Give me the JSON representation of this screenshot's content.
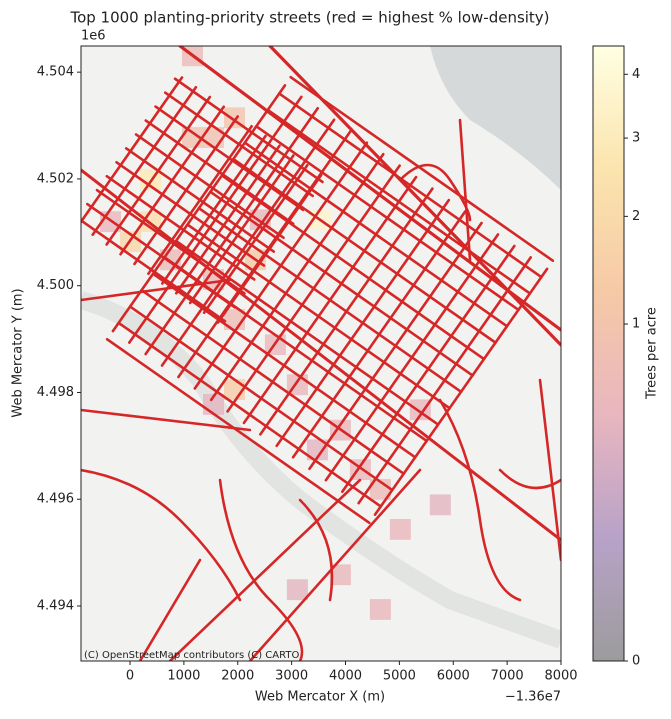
{
  "chart_data": {
    "type": "heatmap-map",
    "title": "Top 1000 planting-priority streets (red = highest % low-density)",
    "x_label": "Web Mercator X (m)",
    "y_label": "Web Mercator Y (m)",
    "x_offset_label": "−1.36e7",
    "y_offset_label": "1e6",
    "attribution": "(C) OpenStreetMap contributors (C) CARTO",
    "xlim": [
      -910,
      8000
    ],
    "ylim": [
      4492970,
      4504490
    ],
    "xticks": [
      0,
      1000,
      2000,
      3000,
      4000,
      5000,
      6000,
      7000,
      8000
    ],
    "yticks": [
      {
        "value": 4494000,
        "label": "4.494"
      },
      {
        "value": 4496000,
        "label": "4.496"
      },
      {
        "value": 4498000,
        "label": "4.498"
      },
      {
        "value": 4500000,
        "label": "4.500"
      },
      {
        "value": 4502000,
        "label": "4.502"
      },
      {
        "value": 4504000,
        "label": "4.504"
      }
    ],
    "street_color": "#d62728",
    "cell_size": 390,
    "cells": [
      {
        "x": 965,
        "y": 4504110,
        "value": 0.6
      },
      {
        "x": 1744,
        "y": 4502950,
        "value": 1.0
      },
      {
        "x": 965,
        "y": 4502580,
        "value": 0.8
      },
      {
        "x": 1354,
        "y": 4502580,
        "value": 0.8
      },
      {
        "x": 186,
        "y": 4501790,
        "value": 2.8
      },
      {
        "x": -557,
        "y": 4501005,
        "value": 0.5
      },
      {
        "x": -186,
        "y": 4500630,
        "value": 1.8
      },
      {
        "x": 186,
        "y": 4501005,
        "value": 2.2
      },
      {
        "x": 3339,
        "y": 4501040,
        "value": 3.5
      },
      {
        "x": 1354,
        "y": 4499920,
        "value": 0.6
      },
      {
        "x": 2133,
        "y": 4500290,
        "value": 1.2
      },
      {
        "x": 1744,
        "y": 4499170,
        "value": 0.7
      },
      {
        "x": 2504,
        "y": 4498700,
        "value": 0.5
      },
      {
        "x": 1354,
        "y": 4497580,
        "value": 0.4
      },
      {
        "x": 1744,
        "y": 4497860,
        "value": 1.3
      },
      {
        "x": 2912,
        "y": 4497950,
        "value": 0.5
      },
      {
        "x": 3283,
        "y": 4496730,
        "value": 0.4
      },
      {
        "x": 3710,
        "y": 4497100,
        "value": 0.5
      },
      {
        "x": 4081,
        "y": 4496360,
        "value": 0.5
      },
      {
        "x": 4452,
        "y": 4495990,
        "value": 0.6
      },
      {
        "x": 5194,
        "y": 4497480,
        "value": 0.5
      },
      {
        "x": 5565,
        "y": 4495700,
        "value": 0.4
      },
      {
        "x": 4823,
        "y": 4495240,
        "value": 0.5
      },
      {
        "x": 3710,
        "y": 4494390,
        "value": 0.5
      },
      {
        "x": 2912,
        "y": 4494110,
        "value": 0.4
      },
      {
        "x": 4452,
        "y": 4493740,
        "value": 0.5
      },
      {
        "x": 2226,
        "y": 4501040,
        "value": 0.5
      },
      {
        "x": 557,
        "y": 4500290,
        "value": 0.6
      }
    ],
    "colorbar": {
      "label": "Trees per acre",
      "lim": [
        0,
        4.5
      ],
      "ticks": [
        0,
        1,
        2,
        3,
        4
      ],
      "norm": "power",
      "gamma": 0.4,
      "colormap": [
        "#9c9c9c",
        "#b8a2c8",
        "#e8b6bf",
        "#f6c9a6",
        "#fbe4ae",
        "#ffffe2"
      ]
    }
  }
}
